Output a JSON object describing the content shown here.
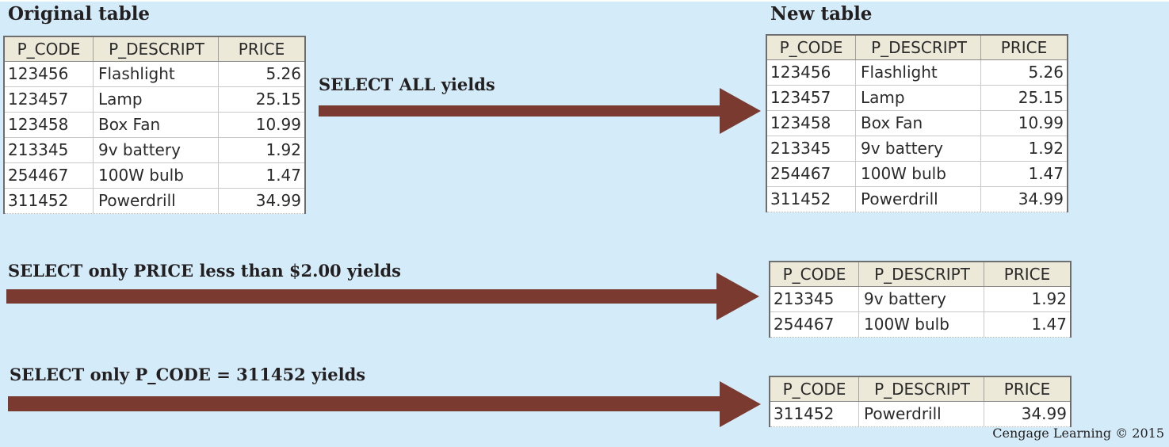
{
  "headings": {
    "original": "Original table",
    "new": "New table"
  },
  "columns": [
    "P_CODE",
    "P_DESCRIPT",
    "PRICE"
  ],
  "original_table": {
    "rows": [
      [
        "123456",
        "Flashlight",
        "5.26"
      ],
      [
        "123457",
        "Lamp",
        "25.15"
      ],
      [
        "123458",
        "Box Fan",
        "10.99"
      ],
      [
        "213345",
        "9v battery",
        "1.92"
      ],
      [
        "254467",
        "100W bulb",
        "1.47"
      ],
      [
        "311452",
        "Powerdrill",
        "34.99"
      ]
    ]
  },
  "operations": [
    {
      "caption": "SELECT ALL yields",
      "rows": [
        [
          "123456",
          "Flashlight",
          "5.26"
        ],
        [
          "123457",
          "Lamp",
          "25.15"
        ],
        [
          "123458",
          "Box Fan",
          "10.99"
        ],
        [
          "213345",
          "9v battery",
          "1.92"
        ],
        [
          "254467",
          "100W bulb",
          "1.47"
        ],
        [
          "311452",
          "Powerdrill",
          "34.99"
        ]
      ]
    },
    {
      "caption": "SELECT only PRICE less than $2.00 yields",
      "rows": [
        [
          "213345",
          "9v battery",
          "1.92"
        ],
        [
          "254467",
          "100W bulb",
          "1.47"
        ]
      ]
    },
    {
      "caption": "SELECT only P_CODE = 311452 yields",
      "rows": [
        [
          "311452",
          "Powerdrill",
          "34.99"
        ]
      ]
    }
  ],
  "credit": "Cengage Learning © 2015",
  "colors": {
    "background": "#d4ecf9",
    "arrow": "#7b3a30",
    "header": "#ece9d8"
  }
}
